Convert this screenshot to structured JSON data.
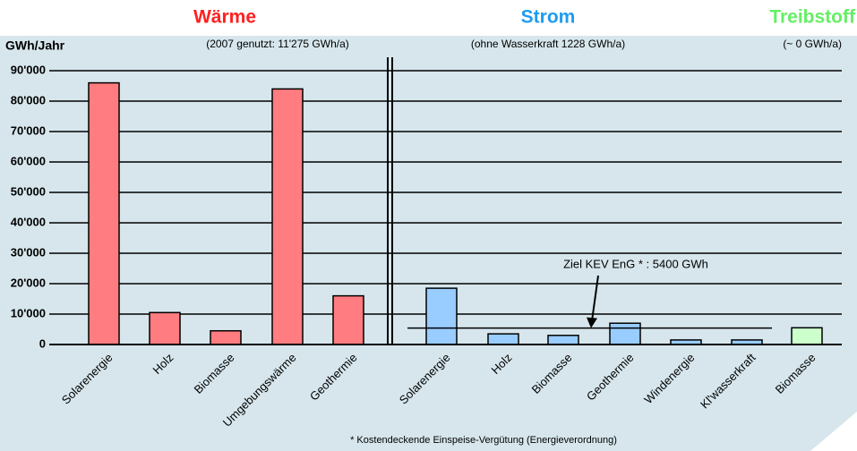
{
  "chart_data": {
    "type": "bar",
    "y_label": "GWh/Jahr",
    "categories": [
      "Solarenergie",
      "Holz",
      "Biomasse",
      "Umgebungswärme",
      "Geothermie",
      "Solarenergie",
      "Holz",
      "Biomasse",
      "Geothermie",
      "Windenergie",
      "Kl'wasserkraft",
      "Biomasse"
    ],
    "series": [
      {
        "name": "Wärme",
        "note": "(2007 genutzt: 11'275 GWh/a)",
        "color": "#ff7c80",
        "title_color": "#ff2020",
        "values": [
          86000,
          10500,
          4500,
          84000,
          16000,
          null,
          null,
          null,
          null,
          null,
          null,
          null
        ]
      },
      {
        "name": "Strom",
        "note": "(ohne Wasserkraft 1228 GWh/a)",
        "color": "#99ccff",
        "title_color": "#1e9cf0",
        "values": [
          null,
          null,
          null,
          null,
          null,
          18500,
          3500,
          3000,
          7000,
          1500,
          1500,
          null
        ]
      },
      {
        "name": "Treibstoff",
        "note": "(~ 0 GWh/a)",
        "color": "#ccffcc",
        "title_color": "#66ee66",
        "values": [
          null,
          null,
          null,
          null,
          null,
          null,
          null,
          null,
          null,
          null,
          null,
          5500
        ]
      }
    ],
    "ylim": [
      0,
      90000
    ],
    "yticks": [
      0,
      {
        "value": 10000,
        "label": "10'000"
      },
      {
        "value": 20000,
        "label": "20'000"
      },
      {
        "value": 30000,
        "label": "30'000"
      },
      {
        "value": 40000,
        "label": "40'000"
      },
      {
        "value": 50000,
        "label": "50'000"
      },
      {
        "value": 60000,
        "label": "60'000"
      },
      {
        "value": 70000,
        "label": "70'000"
      },
      {
        "value": 80000,
        "label": "80'000"
      },
      {
        "value": 90000,
        "label": "90'000"
      }
    ],
    "grid": true,
    "annotation": {
      "label": "Ziel KEV EnG * : 5400 GWh",
      "value": 5400
    },
    "footnote": "* Kostendeckende Einspeise-Vergütung (Energieverordnung)"
  }
}
